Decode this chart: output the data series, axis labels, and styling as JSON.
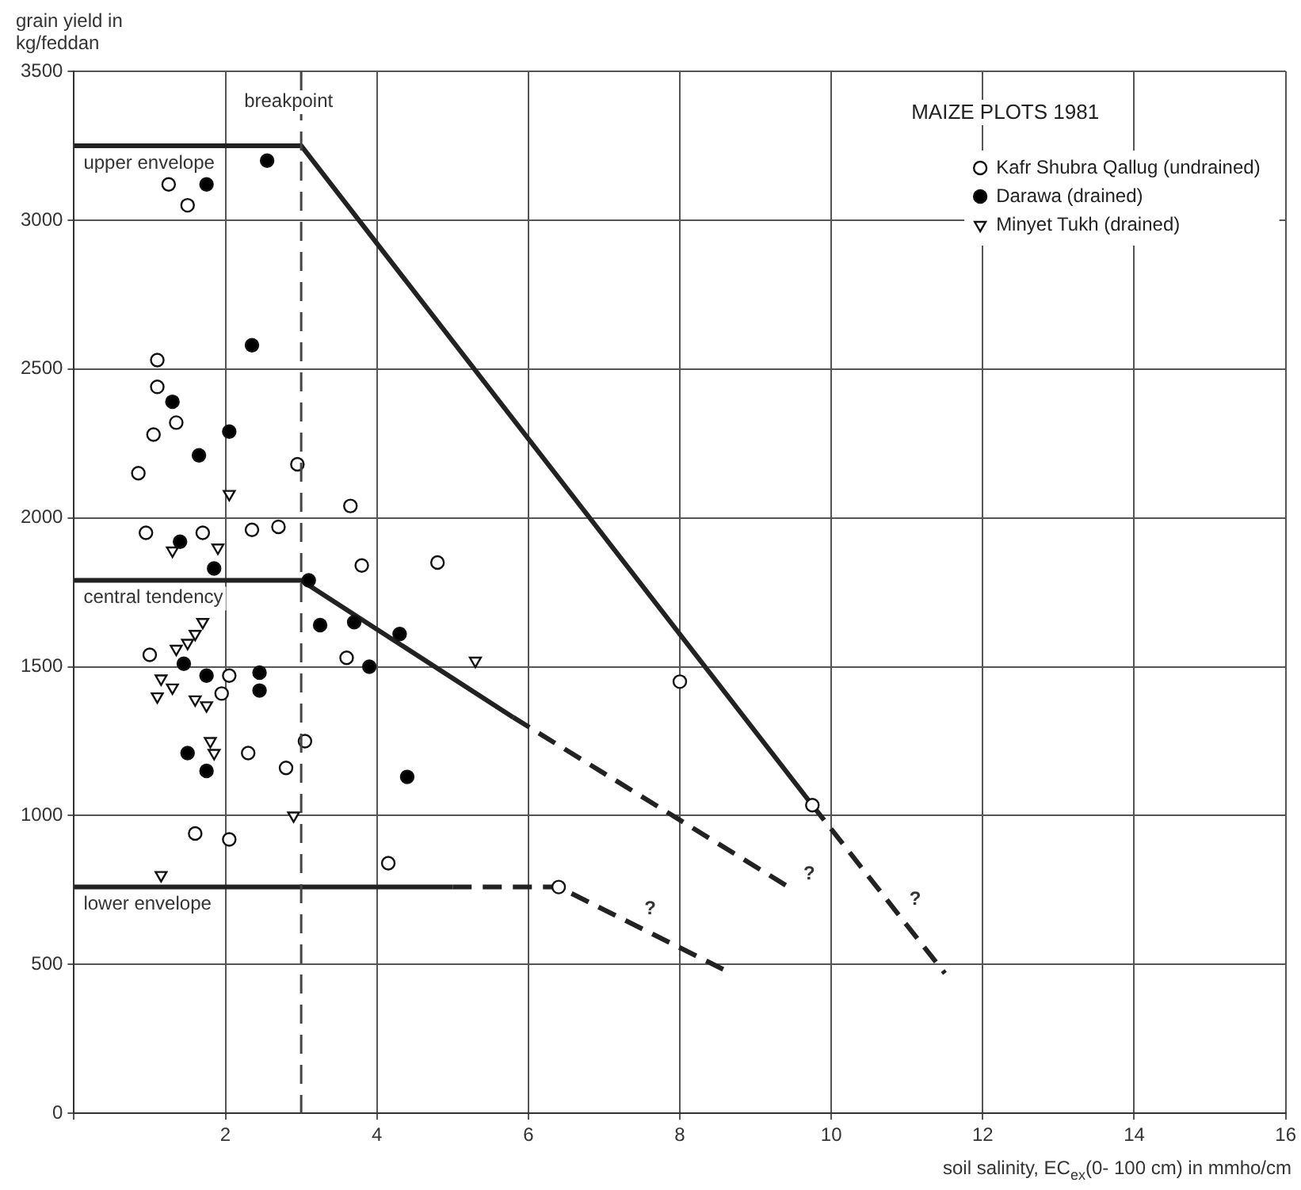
{
  "chart_data": {
    "type": "scatter",
    "title": "MAIZE PLOTS 1981",
    "xlabel": "soil salinity, EC$_{ex}$(0- 100 cm) in mmho/cm",
    "ylabel": "grain yield in kg/feddan",
    "xlim": [
      0,
      16
    ],
    "xticks": [
      {
        "value": 0,
        "label": null
      },
      2,
      4,
      6,
      8,
      10,
      12,
      14,
      16
    ],
    "ylim": [
      0,
      3500
    ],
    "yticks": [
      0,
      500,
      1000,
      1500,
      2000,
      2500,
      3000,
      3500
    ],
    "grid": true,
    "legend": "top right",
    "ref_lines": [
      {
        "axis": "x",
        "value": 3,
        "label": "breakpoint",
        "line_style": "dashed",
        "color": "#444444"
      }
    ],
    "annotations": [
      {
        "text": "?",
        "x": 7.4,
        "y": 633
      },
      {
        "text": "?",
        "x": 9.5,
        "y": 750
      },
      {
        "text": "?",
        "x": 10.9,
        "y": 664
      }
    ],
    "series": [
      {
        "name": "Kafr Shubra Qallug (undrained)",
        "marker": "circle",
        "color": "#ffffff",
        "x": [
          1.25,
          1.5,
          1.1,
          1.1,
          1.35,
          1.05,
          0.85,
          2.95,
          0.95,
          1.7,
          2.35,
          2.7,
          3.65,
          3.8,
          4.8,
          1.0,
          3.6,
          2.05,
          1.95,
          3.05,
          2.3,
          2.8,
          1.6,
          2.05,
          4.15,
          8.0,
          9.75,
          6.4
        ],
        "values": [
          3120,
          3050,
          2530,
          2440,
          2320,
          2280,
          2150,
          2180,
          1950,
          1950,
          1960,
          1970,
          2040,
          1840,
          1850,
          1540,
          1530,
          1470,
          1410,
          1250,
          1210,
          1160,
          940,
          920,
          840,
          1450,
          1035,
          760
        ]
      },
      {
        "name": "Darawa (drained)",
        "marker": "circle",
        "color": "#000000",
        "x": [
          2.55,
          1.75,
          2.35,
          1.3,
          2.05,
          1.65,
          1.4,
          1.85,
          3.1,
          3.25,
          3.7,
          4.3,
          3.9,
          1.45,
          1.75,
          2.45,
          2.45,
          1.5,
          1.75,
          4.4
        ],
        "values": [
          3200,
          3120,
          2580,
          2390,
          2290,
          2210,
          1920,
          1830,
          1790,
          1640,
          1650,
          1610,
          1500,
          1510,
          1470,
          1480,
          1420,
          1210,
          1150,
          1130
        ]
      },
      {
        "name": "Minyet Tukh (drained)",
        "marker": "triangle",
        "color": "#ffffff",
        "x": [
          2.05,
          1.3,
          1.9,
          1.7,
          1.6,
          1.5,
          1.35,
          1.15,
          1.3,
          1.1,
          1.6,
          1.75,
          1.8,
          1.85,
          1.15,
          2.9,
          5.3
        ],
        "values": [
          2080,
          1890,
          1900,
          1650,
          1610,
          1580,
          1560,
          1460,
          1430,
          1400,
          1390,
          1370,
          1250,
          1210,
          800,
          1000,
          1520
        ]
      },
      {
        "name": "upper envelope",
        "type": "line",
        "marker": "none",
        "line_style": "solid",
        "color": "#222222",
        "x": [
          0,
          3,
          9.75
        ],
        "values": [
          3250,
          3250,
          1035
        ]
      },
      {
        "type": "line",
        "marker": "none",
        "line_style": "dashed",
        "color": "#222222",
        "x": [
          9.75,
          11.5
        ],
        "values": [
          1035,
          470
        ]
      },
      {
        "name": "central tendency",
        "type": "line",
        "marker": "none",
        "line_style": "solid",
        "color": "#222222",
        "x": [
          0,
          3,
          5.8
        ],
        "values": [
          1790,
          1790,
          1330
        ]
      },
      {
        "type": "line",
        "marker": "none",
        "line_style": "dashed",
        "color": "#222222",
        "x": [
          5.8,
          9.5
        ],
        "values": [
          1330,
          750
        ]
      },
      {
        "name": "lower envelope",
        "type": "line",
        "marker": "none",
        "line_style": "solid",
        "color": "#222222",
        "x": [
          0,
          5
        ],
        "values": [
          760,
          760
        ]
      },
      {
        "type": "line",
        "marker": "none",
        "line_style": "dashed",
        "color": "#222222",
        "x": [
          5,
          6.4,
          8.6
        ],
        "values": [
          760,
          760,
          480
        ]
      }
    ]
  }
}
